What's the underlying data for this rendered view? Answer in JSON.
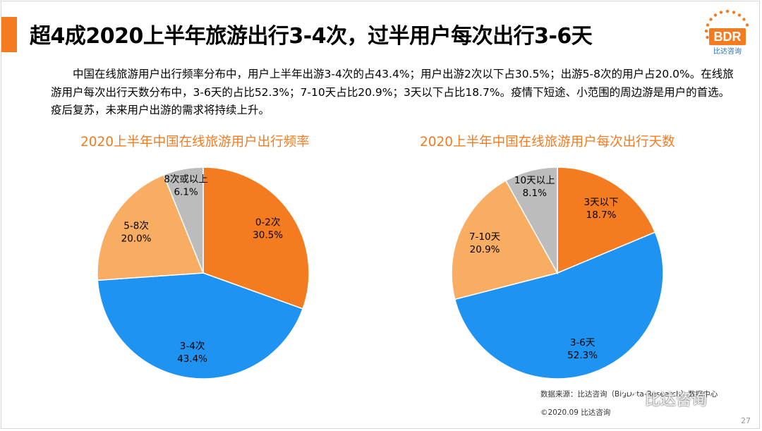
{
  "header": {
    "title": "超4成2020上半年旅游出行3-4次，过半用户每次出行3-6天",
    "logo_text": "BDR",
    "logo_subtext": "比达咨询"
  },
  "summary": "中国在线旅游用户出行频率分布中，用户上半年出游3-4次的占43.4%；用户出游2次以下占30.5%；出游5-8次的用户占20.0%。在线旅游用户每次出行天数分布中，3-6天的占比52.3%；7-10天占比20.9%；3天以下占比18.7%。疫情下短途、小范围的周边游是用户的首选。疫后复苏，未来用户出游的需求将持续上升。",
  "colors": {
    "accent": "#f47b20",
    "orange": "#f47b20",
    "blue": "#1f93f2",
    "light_orange": "#f9ad62",
    "gray": "#bcbcbc"
  },
  "chart_data": [
    {
      "type": "pie",
      "title": "2020上半年中国在线旅游用户出行频率",
      "slices": [
        {
          "name": "0-2次",
          "value": 30.5,
          "label": "30.5%",
          "color": "#f47b20"
        },
        {
          "name": "3-4次",
          "value": 43.4,
          "label": "43.4%",
          "color": "#1f93f2"
        },
        {
          "name": "5-8次",
          "value": 20.0,
          "label": "20.0%",
          "color": "#f9ad62"
        },
        {
          "name": "8次或以上",
          "value": 6.1,
          "label": "6.1%",
          "color": "#bcbcbc"
        }
      ]
    },
    {
      "type": "pie",
      "title": "2020上半年中国在线旅游用户每次出行天数",
      "slices": [
        {
          "name": "3天以下",
          "value": 18.7,
          "label": "18.7%",
          "color": "#f47b20"
        },
        {
          "name": "3-6天",
          "value": 52.3,
          "label": "52.3%",
          "color": "#1f93f2"
        },
        {
          "name": "7-10天",
          "value": 20.9,
          "label": "20.9%",
          "color": "#f9ad62"
        },
        {
          "name": "10天以上",
          "value": 8.1,
          "label": "8.1%",
          "color": "#bcbcbc"
        }
      ]
    }
  ],
  "footer": {
    "source": "数据来源：比达咨询（BigData-Research）数据中心",
    "copyright": "©2020.09 比达咨询",
    "watermark": "比达咨询",
    "page_number": "27"
  }
}
